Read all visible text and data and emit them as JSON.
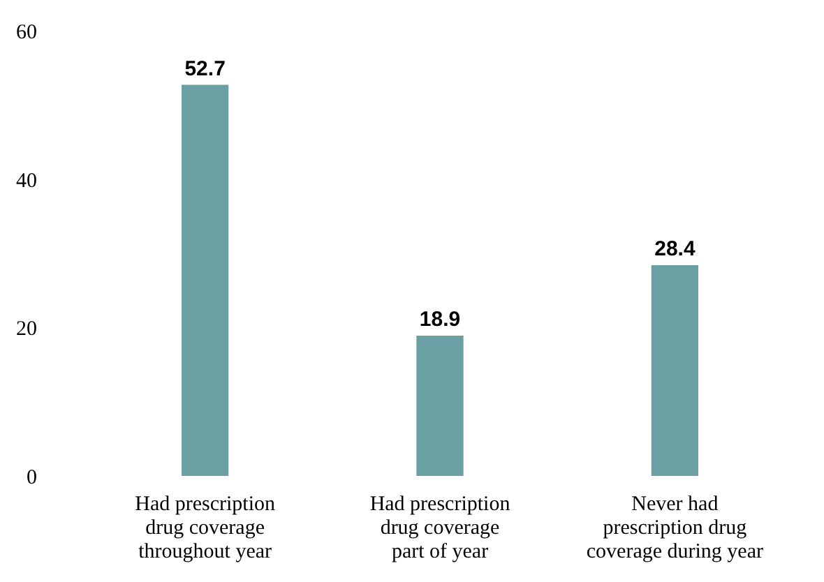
{
  "chart_data": {
    "type": "bar",
    "categories": [
      "Had prescription\ndrug coverage\nthroughout year",
      "Had prescription\ndrug coverage\npart of year",
      "Never had\nprescription drug\ncoverage during year"
    ],
    "values": [
      52.7,
      18.9,
      28.4
    ],
    "color": "#6a9fa3",
    "ylim": [
      0,
      60
    ],
    "yticks": [
      0,
      20,
      40,
      60
    ],
    "grid": false,
    "data_labels": true
  }
}
